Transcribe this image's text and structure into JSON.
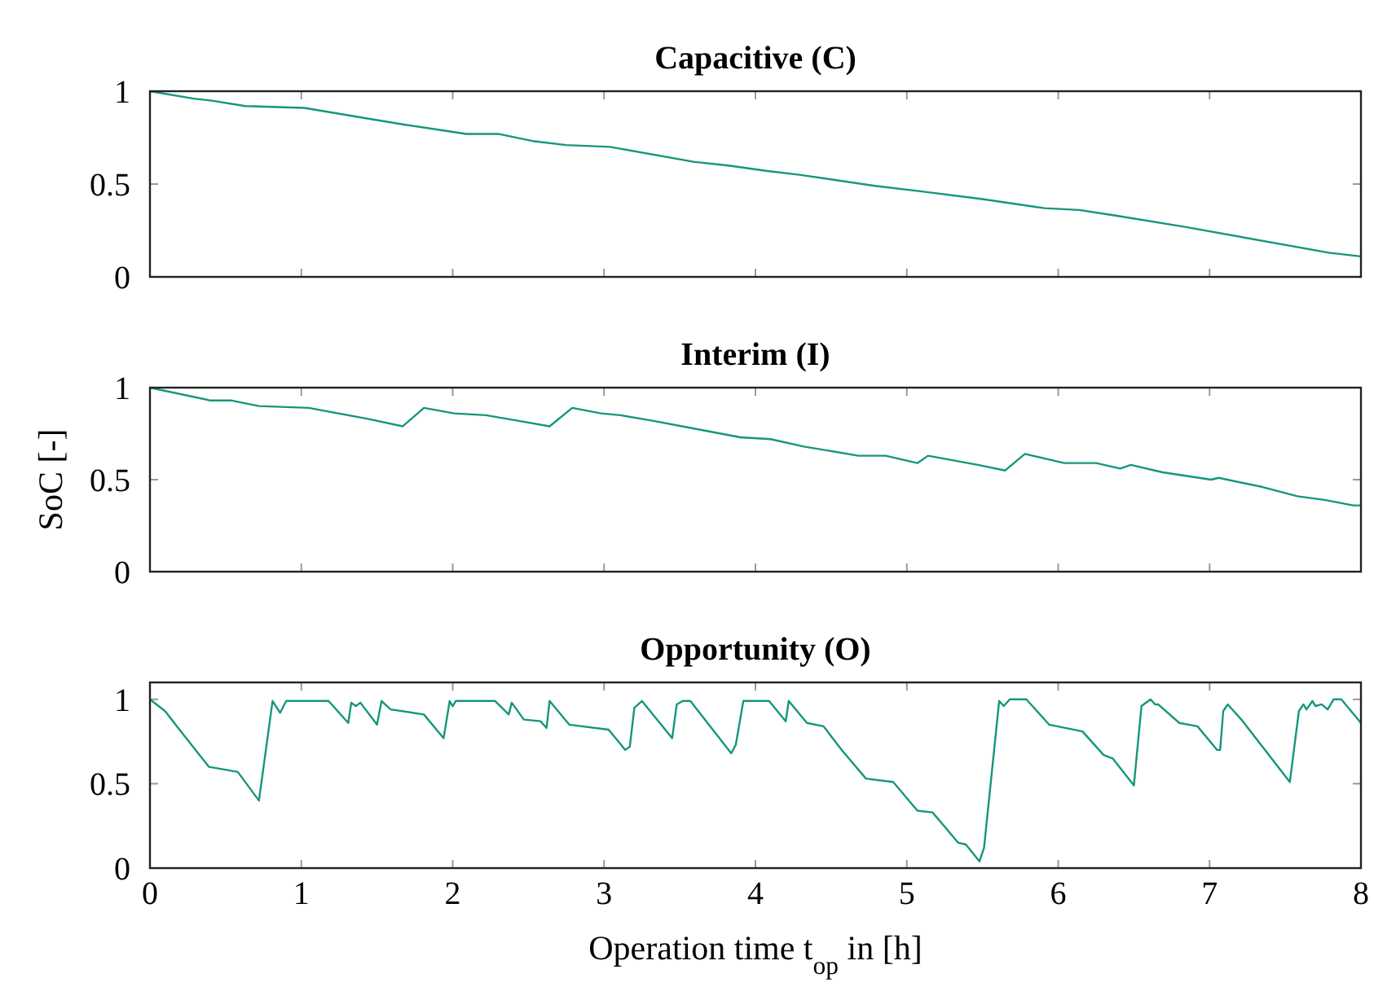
{
  "chart_data": [
    {
      "type": "line",
      "title": "Capacitive (C)",
      "xlim": [
        0,
        8
      ],
      "xticks": [
        0,
        1,
        2,
        3,
        4,
        5,
        6,
        7,
        8
      ],
      "ylim": [
        0,
        1
      ],
      "yticks": [
        0,
        0.5,
        1
      ],
      "tick_labels": "y",
      "grid": false,
      "marker": "none",
      "line_style": "solid",
      "series": [
        {
          "color": "#16967c",
          "x": [
            0,
            0.29,
            0.4,
            0.63,
            1.02,
            1.46,
            1.68,
            2.09,
            2.3,
            2.54,
            2.75,
            3.04,
            3.59,
            3.82,
            4.08,
            4.29,
            4.79,
            5.1,
            5.49,
            5.91,
            6.14,
            6.38,
            6.83,
            7.79,
            8
          ],
          "values": [
            1,
            0.96,
            0.95,
            0.92,
            0.91,
            0.85,
            0.82,
            0.77,
            0.77,
            0.73,
            0.71,
            0.7,
            0.62,
            0.6,
            0.57,
            0.55,
            0.49,
            0.46,
            0.42,
            0.37,
            0.36,
            0.33,
            0.27,
            0.13,
            0.11
          ]
        }
      ]
    },
    {
      "type": "line",
      "title": "Interim (I)",
      "ylabel": "SoC [-]",
      "xlim": [
        0,
        8
      ],
      "xticks": [
        0,
        1,
        2,
        3,
        4,
        5,
        6,
        7,
        8
      ],
      "ylim": [
        0,
        1
      ],
      "yticks": [
        0,
        0.5,
        1
      ],
      "tick_labels": "y",
      "grid": false,
      "marker": "none",
      "line_style": "solid",
      "series": [
        {
          "color": "#16967c",
          "x": [
            0,
            0.4,
            0.54,
            0.72,
            1.05,
            1.44,
            1.67,
            1.81,
            2.01,
            2.22,
            2.43,
            2.64,
            2.79,
            2.98,
            3.11,
            3.32,
            3.58,
            3.9,
            4.1,
            4.32,
            4.68,
            4.86,
            5.07,
            5.14,
            5.47,
            5.65,
            5.78,
            6.04,
            6.25,
            6.41,
            6.48,
            6.69,
            7.01,
            7.06,
            7.35,
            7.58,
            7.76,
            7.95,
            8
          ],
          "values": [
            1,
            0.93,
            0.93,
            0.9,
            0.89,
            0.83,
            0.79,
            0.89,
            0.86,
            0.85,
            0.82,
            0.79,
            0.89,
            0.86,
            0.85,
            0.82,
            0.78,
            0.73,
            0.72,
            0.68,
            0.63,
            0.63,
            0.59,
            0.63,
            0.58,
            0.55,
            0.64,
            0.59,
            0.59,
            0.56,
            0.58,
            0.54,
            0.5,
            0.51,
            0.46,
            0.41,
            0.39,
            0.36,
            0.36
          ]
        }
      ]
    },
    {
      "type": "line",
      "title": "Opportunity (O)",
      "xlabel": "Operation time t$_{op}$ in [h]",
      "xlim": [
        0,
        8
      ],
      "xticks": [
        0,
        1,
        2,
        3,
        4,
        5,
        6,
        7,
        8
      ],
      "ylim": [
        0,
        1.1
      ],
      "yticks": [
        0,
        0.5,
        1
      ],
      "grid": false,
      "marker": "none",
      "line_style": "solid",
      "series": [
        {
          "color": "#16967c",
          "x": [
            0,
            0.1,
            0.23,
            0.39,
            0.58,
            0.72,
            0.81,
            0.86,
            0.9,
            1.18,
            1.31,
            1.33,
            1.36,
            1.39,
            1.5,
            1.53,
            1.59,
            1.81,
            1.94,
            1.98,
            2.0,
            2.02,
            2.28,
            2.37,
            2.39,
            2.47,
            2.58,
            2.62,
            2.64,
            2.77,
            3.03,
            3.14,
            3.17,
            3.2,
            3.25,
            3.45,
            3.48,
            3.52,
            3.57,
            3.84,
            3.87,
            3.92,
            4.09,
            4.2,
            4.22,
            4.34,
            4.45,
            4.57,
            4.73,
            4.91,
            5.07,
            5.17,
            5.34,
            5.39,
            5.48,
            5.51,
            5.61,
            5.64,
            5.68,
            5.79,
            5.94,
            6.16,
            6.3,
            6.36,
            6.5,
            6.55,
            6.61,
            6.64,
            6.66,
            6.8,
            6.92,
            7.05,
            7.07,
            7.09,
            7.12,
            7.21,
            7.53,
            7.59,
            7.62,
            7.64,
            7.68,
            7.7,
            7.74,
            7.78,
            7.82,
            7.87,
            8
          ],
          "values": [
            1,
            0.93,
            0.78,
            0.6,
            0.57,
            0.4,
            0.99,
            0.92,
            0.99,
            0.99,
            0.86,
            0.98,
            0.96,
            0.98,
            0.85,
            0.99,
            0.94,
            0.91,
            0.77,
            0.99,
            0.96,
            0.99,
            0.99,
            0.91,
            0.98,
            0.88,
            0.87,
            0.83,
            0.99,
            0.85,
            0.82,
            0.7,
            0.72,
            0.95,
            0.99,
            0.77,
            0.97,
            0.99,
            0.99,
            0.68,
            0.73,
            0.99,
            0.99,
            0.87,
            0.99,
            0.86,
            0.84,
            0.7,
            0.53,
            0.51,
            0.34,
            0.33,
            0.15,
            0.14,
            0.04,
            0.12,
            0.99,
            0.96,
            1,
            1,
            0.85,
            0.81,
            0.67,
            0.65,
            0.49,
            0.96,
            1,
            0.97,
            0.97,
            0.86,
            0.84,
            0.7,
            0.7,
            0.93,
            0.97,
            0.88,
            0.51,
            0.93,
            0.97,
            0.94,
            0.99,
            0.96,
            0.97,
            0.94,
            1,
            1,
            0.86
          ]
        }
      ]
    }
  ]
}
